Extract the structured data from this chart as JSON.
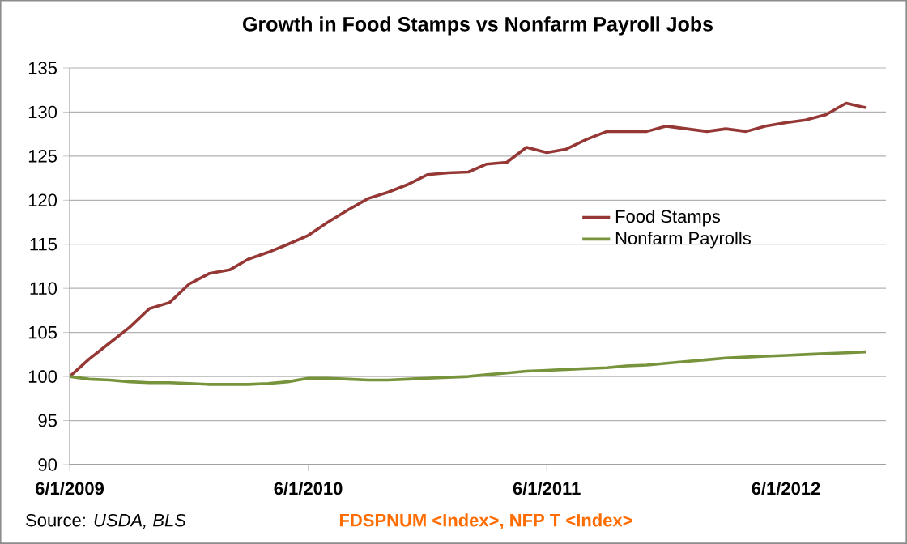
{
  "chart_data": {
    "type": "line",
    "title": "Growth in Food Stamps vs Nonfarm Payroll Jobs",
    "x": [
      "2009-06",
      "2009-07",
      "2009-08",
      "2009-09",
      "2009-10",
      "2009-11",
      "2009-12",
      "2010-01",
      "2010-02",
      "2010-03",
      "2010-04",
      "2010-05",
      "2010-06",
      "2010-07",
      "2010-08",
      "2010-09",
      "2010-10",
      "2010-11",
      "2010-12",
      "2011-01",
      "2011-02",
      "2011-03",
      "2011-04",
      "2011-05",
      "2011-06",
      "2011-07",
      "2011-08",
      "2011-09",
      "2011-10",
      "2011-11",
      "2011-12",
      "2012-01",
      "2012-02",
      "2012-03",
      "2012-04",
      "2012-05",
      "2012-06",
      "2012-07",
      "2012-08",
      "2012-09",
      "2012-10"
    ],
    "series": [
      {
        "name": "Food Stamps",
        "color": "#953735",
        "values": [
          100,
          102.0,
          103.8,
          105.6,
          107.7,
          108.4,
          110.5,
          111.7,
          112.1,
          113.3,
          114.1,
          115.0,
          116.0,
          117.5,
          118.9,
          120.2,
          120.9,
          121.8,
          122.9,
          123.1,
          123.2,
          124.1,
          124.3,
          126.0,
          125.4,
          125.8,
          126.9,
          127.8,
          127.8,
          127.8,
          128.4,
          128.1,
          127.8,
          128.1,
          127.8,
          128.4,
          128.8,
          129.1,
          129.7,
          131.0,
          130.5
        ]
      },
      {
        "name": "Nonfarm Payrolls",
        "color": "#77933c",
        "values": [
          100,
          99.7,
          99.6,
          99.4,
          99.3,
          99.3,
          99.2,
          99.1,
          99.1,
          99.1,
          99.2,
          99.4,
          99.8,
          99.8,
          99.7,
          99.6,
          99.6,
          99.7,
          99.8,
          99.9,
          100.0,
          100.2,
          100.4,
          100.6,
          100.7,
          100.8,
          100.9,
          101.0,
          101.2,
          101.3,
          101.5,
          101.7,
          101.9,
          102.1,
          102.2,
          102.3,
          102.4,
          102.5,
          102.6,
          102.7,
          102.8
        ]
      }
    ],
    "xlim": [
      "2009-06-01",
      "2012-11-01"
    ],
    "xticks": [
      {
        "value": "2009-06-01",
        "label": "6/1/2009"
      },
      {
        "value": "2010-06-01",
        "label": "6/1/2010"
      },
      {
        "value": "2011-06-01",
        "label": "6/1/2011"
      },
      {
        "value": "2012-06-01",
        "label": "6/1/2012"
      }
    ],
    "ylim": [
      90,
      135
    ],
    "yticks": [
      90,
      95,
      100,
      105,
      110,
      115,
      120,
      125,
      130,
      135
    ],
    "grid": "y",
    "legend": "right",
    "marker": "none",
    "line_style": "solid",
    "annotations": [
      "Source: *USDA, BLS*",
      "FDSPNUM <Index>, NFP T <Index>"
    ]
  }
}
